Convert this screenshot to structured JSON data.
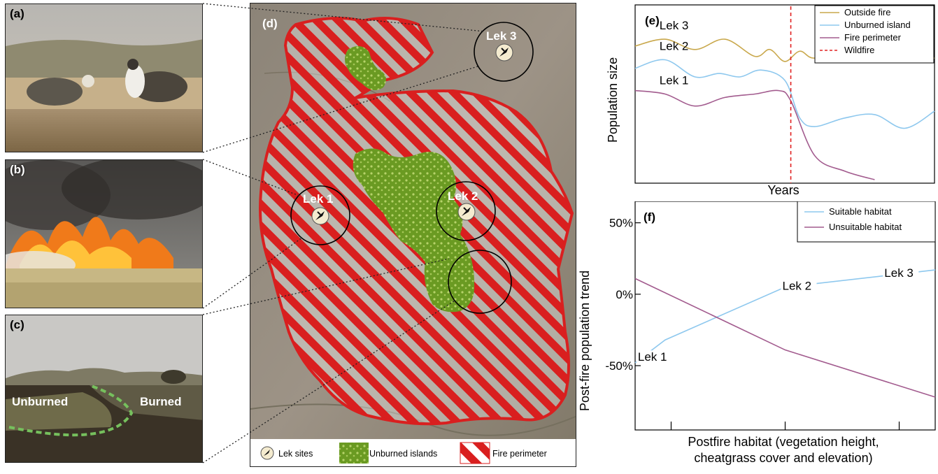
{
  "panels": {
    "a": {
      "label": "(a)"
    },
    "b": {
      "label": "(b)"
    },
    "c": {
      "label": "(c)",
      "unburned": "Unburned",
      "burned": "Burned"
    },
    "d": {
      "label": "(d)",
      "lek1": "Lek 1",
      "lek2": "Lek 2",
      "lek3": "Lek 3",
      "legend": {
        "lek": "Lek sites",
        "islands": "Unburned islands",
        "fire": "Fire perimeter"
      }
    },
    "e": {
      "label": "(e)"
    },
    "f": {
      "label": "(f)"
    }
  },
  "colors": {
    "outside": "#c9a84c",
    "unburned": "#8ec8ee",
    "perimeter": "#a25b8e",
    "wildfire": "#e02020",
    "fire_hatch": "#d91f1f",
    "island": "#6a9a22"
  },
  "chart_data": [
    {
      "type": "line",
      "title": "",
      "xlabel": "Years",
      "ylabel": "Population size",
      "legend_position": "top-right",
      "series": [
        {
          "name": "Outside fire",
          "label": "Lek 3",
          "color": "#c9a84c",
          "x": [
            0,
            0.1,
            0.2,
            0.3,
            0.4,
            0.45,
            0.5,
            0.55,
            0.6,
            0.7,
            0.75,
            0.8,
            0.9,
            1.0
          ],
          "y": [
            0.78,
            0.82,
            0.76,
            0.82,
            0.72,
            0.76,
            0.69,
            0.75,
            0.71,
            0.78,
            0.72,
            0.75,
            0.7,
            0.71
          ]
        },
        {
          "name": "Unburned island",
          "label": "Lek 2",
          "color": "#8ec8ee",
          "x": [
            0,
            0.1,
            0.2,
            0.28,
            0.35,
            0.42,
            0.5,
            0.55,
            0.6,
            0.7,
            0.8,
            0.9,
            1.0
          ],
          "y": [
            0.65,
            0.7,
            0.6,
            0.62,
            0.6,
            0.64,
            0.58,
            0.36,
            0.31,
            0.36,
            0.38,
            0.3,
            0.4
          ]
        },
        {
          "name": "Fire perimeter",
          "label": "Lek 1",
          "color": "#a25b8e",
          "x": [
            0,
            0.1,
            0.2,
            0.3,
            0.4,
            0.48,
            0.52,
            0.6,
            0.7,
            0.8
          ],
          "y": [
            0.52,
            0.5,
            0.43,
            0.48,
            0.5,
            0.52,
            0.46,
            0.14,
            0.05,
            0.0
          ]
        }
      ],
      "annotations": [
        {
          "name": "Wildfire",
          "type": "vline",
          "x": 0.52,
          "color": "#e02020",
          "style": "dashed"
        }
      ]
    },
    {
      "type": "line",
      "title": "",
      "xlabel": "Postfire habitat (vegetation height, cheatgrass cover and elevation)",
      "ylabel": "Post-fire population trend",
      "ylim": [
        -95,
        65
      ],
      "yticks": [
        "50%",
        "0%",
        "-50%"
      ],
      "ytick_values": [
        50,
        0,
        -50
      ],
      "legend_position": "top-right",
      "series": [
        {
          "name": "Suitable habitat",
          "color": "#8ec8ee",
          "x": [
            0,
            0.1,
            0.5,
            1.0
          ],
          "y": [
            -48,
            -32,
            5,
            17
          ],
          "point_labels": [
            {
              "text": "Lek 1",
              "x": 0.1,
              "y": -32
            },
            {
              "text": "Lek 2",
              "x": 0.5,
              "y": 5
            },
            {
              "text": "Lek 3",
              "x": 0.89,
              "y": 14
            }
          ]
        },
        {
          "name": "Unsuitable habitat",
          "color": "#a25b8e",
          "x": [
            0,
            0.5,
            1.0
          ],
          "y": [
            11,
            -39,
            -72
          ]
        }
      ]
    }
  ]
}
